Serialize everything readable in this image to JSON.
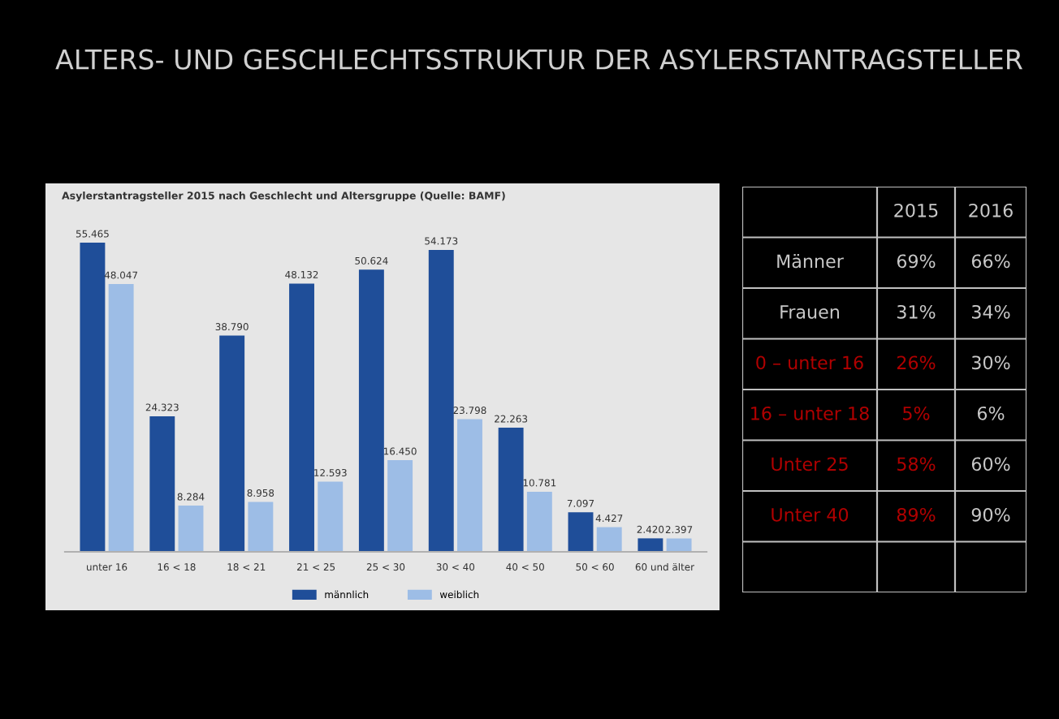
{
  "chart_data": [
    {
      "type": "bar",
      "title": "ALTERS- UND GESCHLECHTSSTRUKTUR DER ASYLERSTANTRAGSTELLER",
      "subtitle": "Asylerstantragsteller 2015 nach Geschlecht und Altersgruppe (Quelle: BAMF)",
      "categories": [
        "unter 16",
        "16 < 18",
        "18 < 21",
        "21 < 25",
        "25 < 30",
        "30 < 40",
        "40 < 50",
        "50 < 60",
        "60 und älter"
      ],
      "series": [
        {
          "name": "männlich",
          "color": "#1f4e99",
          "values": [
            55465,
            24323,
            38790,
            48132,
            50624,
            54173,
            22263,
            7097,
            2420
          ],
          "value_labels": [
            "55.465",
            "24.323",
            "38.790",
            "48.132",
            "50.624",
            "54.173",
            "22.263",
            "7.097",
            "2.420"
          ]
        },
        {
          "name": "weiblich",
          "color": "#9dbde6",
          "values": [
            48047,
            8284,
            8958,
            12593,
            16450,
            23798,
            10781,
            4427,
            2397
          ],
          "value_labels": [
            "48.047",
            "8.284",
            "8.958",
            "12.593",
            "16.450",
            "23.798",
            "10.781",
            "4.427",
            "2.397"
          ]
        }
      ],
      "tick_labels": "x",
      "legend": "bottom",
      "grid": false
    },
    {
      "type": "other",
      "categories": [
        null,
        "2015",
        "2016"
      ],
      "y_categories": [
        "Männer",
        "Frauen",
        "0 – unter 16",
        "16 – unter 18",
        "Unter 25",
        "Unter 40",
        null
      ],
      "cell_labels": [
        [
          "69%",
          "66%"
        ],
        [
          "31%",
          "34%"
        ],
        [
          "26%",
          "30%"
        ],
        [
          "5%",
          "6%"
        ],
        [
          "58%",
          "60%"
        ],
        [
          "89%",
          "90%"
        ],
        [
          null,
          null
        ]
      ],
      "colors": [
        [
          "#c8c8c8",
          "#c8c8c8",
          "#c8c8c8"
        ],
        [
          "#c8c8c8",
          "#c8c8c8",
          "#c8c8c8"
        ],
        [
          "#b00000",
          "#b00000",
          "#c8c8c8"
        ],
        [
          "#b00000",
          "#b00000",
          "#c8c8c8"
        ],
        [
          "#b00000",
          "#b00000",
          "#c8c8c8"
        ],
        [
          "#b00000",
          "#b00000",
          "#c8c8c8"
        ],
        [
          "#c8c8c8",
          "#c8c8c8",
          "#c8c8c8"
        ]
      ]
    }
  ]
}
